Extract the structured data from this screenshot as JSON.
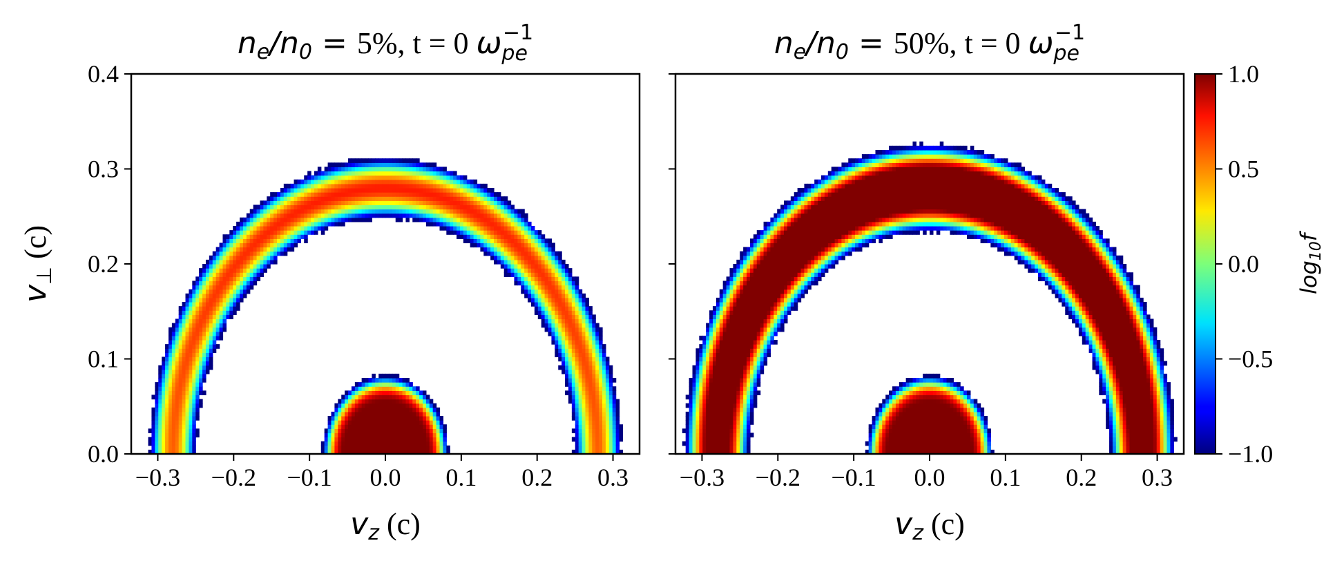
{
  "chart_data": [
    {
      "type": "heatmap",
      "title": "n_e/n_0 = 5%, t = 0 ω_pe^-1",
      "title_parts": {
        "ratio": "n",
        "sub1": "e",
        "slash": "/n",
        "sub2": "0",
        "eq": " = ",
        "value": "5%",
        "time": ", t = 0 ",
        "omega": "ω",
        "sub3": "pe",
        "sup": "−1"
      },
      "xlabel": "v_z (c)",
      "ylabel": "v_⊥ (c)",
      "xlim": [
        -0.335,
        0.335
      ],
      "ylim": [
        0.0,
        0.4
      ],
      "xticks": [
        -0.3,
        -0.2,
        -0.1,
        0.0,
        0.1,
        0.2,
        0.3
      ],
      "xtick_labels": [
        "−0.3",
        "−0.2",
        "−0.1",
        "0.0",
        "0.1",
        "0.2",
        "0.3"
      ],
      "yticks": [
        0.0,
        0.1,
        0.2,
        0.3,
        0.4
      ],
      "ytick_labels": [
        "0.0",
        "0.1",
        "0.2",
        "0.3",
        "0.4"
      ],
      "components": [
        {
          "name": "ring",
          "center_vz": 0.0,
          "center_vperp": 0.0,
          "radius": 0.28,
          "width": 0.012,
          "peak_log10f": 0.55,
          "floor_log10f": -1.0
        },
        {
          "name": "core",
          "center_vz": 0.0,
          "center_vperp": 0.0,
          "radius": 0.055,
          "width": 0.012,
          "peak_log10f": 1.0,
          "floor_log10f": -1.0
        }
      ]
    },
    {
      "type": "heatmap",
      "title": "n_e/n_0 = 50%, t = 0 ω_pe^-1",
      "title_parts": {
        "ratio": "n",
        "sub1": "e",
        "slash": "/n",
        "sub2": "0",
        "eq": " = ",
        "value": "50%",
        "time": ", t = 0 ",
        "omega": "ω",
        "sub3": "pe",
        "sup": "−1"
      },
      "xlabel": "v_z (c)",
      "xlim": [
        -0.335,
        0.335
      ],
      "ylim": [
        0.0,
        0.4
      ],
      "xticks": [
        -0.3,
        -0.2,
        -0.1,
        0.0,
        0.1,
        0.2,
        0.3
      ],
      "xtick_labels": [
        "−0.3",
        "−0.2",
        "−0.1",
        "0.0",
        "0.1",
        "0.2",
        "0.3"
      ],
      "yticks": [
        0.0,
        0.1,
        0.2,
        0.3,
        0.4
      ],
      "components": [
        {
          "name": "ring",
          "center_vz": 0.0,
          "center_vperp": 0.0,
          "radius": 0.28,
          "width": 0.014,
          "peak_log10f": 1.6,
          "floor_log10f": -1.0
        },
        {
          "name": "core",
          "center_vz": 0.0,
          "center_vperp": 0.0,
          "radius": 0.055,
          "width": 0.012,
          "peak_log10f": 1.0,
          "floor_log10f": -1.0
        }
      ]
    }
  ],
  "colorbar": {
    "label": "log10f",
    "label_parts": {
      "base": "log",
      "sub": "10",
      "var": "f"
    },
    "colormap": "jet",
    "range": [
      -1.0,
      1.0
    ],
    "ticks": [
      -1.0,
      -0.5,
      0.0,
      0.5,
      1.0
    ],
    "tick_labels": [
      "−1.0",
      "−0.5",
      "0.0",
      "0.5",
      "1.0"
    ]
  },
  "axis_label_parts": {
    "x": {
      "var": "v",
      "sub": "z",
      "unit": " (c)"
    },
    "y": {
      "var": "v",
      "sub": "⊥",
      "unit": " (c)"
    }
  }
}
